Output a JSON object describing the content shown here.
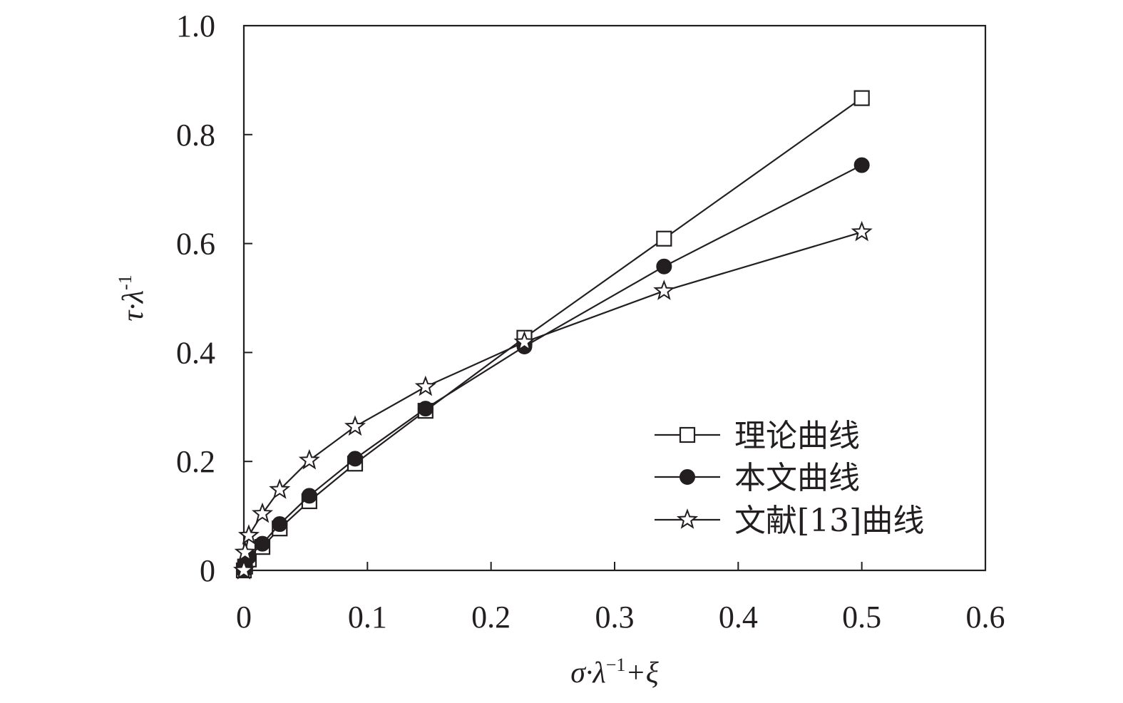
{
  "chart_data": {
    "type": "line",
    "xlabel": {
      "base": "σ·λ",
      "sup": "−1",
      "tail": "+ξ"
    },
    "ylabel": {
      "base": "τ·λ",
      "sup": "-1"
    },
    "xlim": [
      0,
      0.6
    ],
    "ylim": [
      0,
      1.0
    ],
    "xticks": [
      "0",
      "0.1",
      "0.2",
      "0.3",
      "0.4",
      "0.5",
      "0.6"
    ],
    "yticks": [
      "0",
      "0.2",
      "0.4",
      "0.6",
      "0.8",
      "1.0"
    ],
    "grid": false,
    "legend": "bottom-right",
    "series": [
      {
        "name": "理论曲线",
        "marker": "square-open",
        "x": [
          0,
          0.001,
          0.004,
          0.015,
          0.029,
          0.053,
          0.09,
          0.147,
          0.227,
          0.34,
          0.5
        ],
        "y": [
          0,
          0.007,
          0.02,
          0.043,
          0.077,
          0.127,
          0.196,
          0.293,
          0.427,
          0.609,
          0.867
        ]
      },
      {
        "name": "本文曲线",
        "marker": "circle-filled",
        "x": [
          0,
          0.001,
          0.004,
          0.015,
          0.029,
          0.053,
          0.09,
          0.147,
          0.227,
          0.34,
          0.5
        ],
        "y": [
          0,
          0.01,
          0.025,
          0.049,
          0.085,
          0.137,
          0.205,
          0.297,
          0.411,
          0.558,
          0.744
        ]
      },
      {
        "name": "文献[13]曲线",
        "marker": "star-open",
        "x": [
          0,
          0.001,
          0.004,
          0.015,
          0.029,
          0.053,
          0.09,
          0.147,
          0.227,
          0.34,
          0.5
        ],
        "y": [
          0,
          0.033,
          0.064,
          0.104,
          0.148,
          0.202,
          0.264,
          0.337,
          0.419,
          0.513,
          0.621
        ]
      }
    ]
  }
}
